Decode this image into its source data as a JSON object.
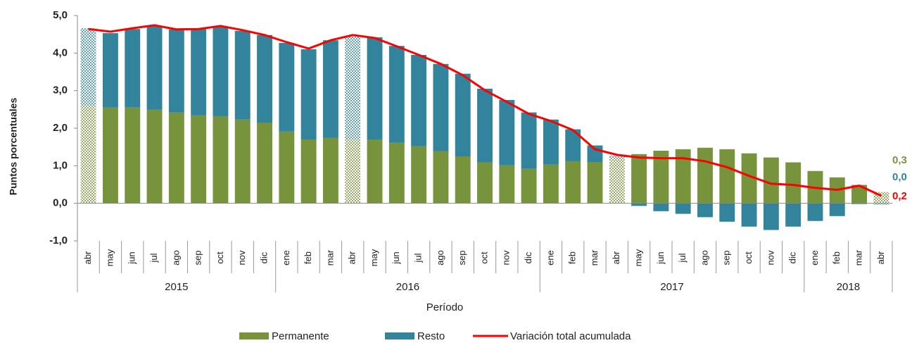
{
  "chart_data": {
    "type": "stacked_bar_line",
    "y_axis_label": "Puntos porcentuales",
    "x_axis_label": "Período",
    "categories": [
      "abr",
      "may",
      "jun",
      "jul",
      "ago",
      "sep",
      "oct",
      "nov",
      "dic",
      "ene",
      "feb",
      "mar",
      "abr",
      "may",
      "jun",
      "jul",
      "ago",
      "sep",
      "oct",
      "nov",
      "dic",
      "ene",
      "feb",
      "mar",
      "abr",
      "may",
      "jun",
      "jul",
      "ago",
      "sep",
      "oct",
      "nov",
      "dic",
      "ene",
      "feb",
      "mar",
      "abr"
    ],
    "groups": [
      {
        "label": "2015",
        "size": 9
      },
      {
        "label": "2016",
        "size": 12
      },
      {
        "label": "2017",
        "size": 12
      },
      {
        "label": "2018",
        "size": 4
      }
    ],
    "patterned_indices": [
      0,
      12,
      24,
      36
    ],
    "series": [
      {
        "name": "Permanente",
        "color": "#77933c",
        "kind": "bar",
        "values": [
          2.6,
          2.55,
          2.55,
          2.49,
          2.42,
          2.34,
          2.32,
          2.23,
          2.15,
          1.91,
          1.7,
          1.74,
          1.7,
          1.7,
          1.61,
          1.52,
          1.39,
          1.25,
          1.09,
          1.01,
          0.92,
          1.03,
          1.12,
          1.1,
          1.2,
          1.31,
          1.4,
          1.44,
          1.48,
          1.44,
          1.33,
          1.22,
          1.09,
          0.86,
          0.69,
          0.49,
          0.3
        ],
        "value_labels": [
          null,
          null,
          null,
          null,
          null,
          null,
          null,
          null,
          null,
          null,
          null,
          null,
          null,
          null,
          null,
          null,
          null,
          null,
          null,
          null,
          null,
          null,
          null,
          null,
          null,
          null,
          null,
          null,
          null,
          null,
          null,
          null,
          null,
          null,
          null,
          null,
          "0,3"
        ]
      },
      {
        "name": "Resto",
        "color": "#31849b",
        "kind": "bar",
        "values": [
          2.06,
          1.98,
          2.09,
          2.23,
          2.21,
          2.3,
          2.38,
          2.36,
          2.33,
          2.36,
          2.4,
          2.6,
          2.74,
          2.72,
          2.58,
          2.43,
          2.32,
          2.2,
          1.96,
          1.74,
          1.5,
          1.2,
          0.85,
          0.44,
          0.07,
          -0.07,
          -0.21,
          -0.28,
          -0.37,
          -0.49,
          -0.62,
          -0.71,
          -0.62,
          -0.47,
          -0.34,
          -0.02,
          -0.04
        ],
        "value_labels": [
          null,
          null,
          null,
          null,
          null,
          null,
          null,
          null,
          null,
          null,
          null,
          null,
          null,
          null,
          null,
          null,
          null,
          null,
          null,
          null,
          null,
          null,
          null,
          null,
          null,
          null,
          null,
          null,
          null,
          null,
          null,
          null,
          null,
          null,
          null,
          null,
          "0,0"
        ]
      },
      {
        "name": "Variación total acumulada",
        "color": "#ff0000",
        "kind": "line",
        "values": [
          4.64,
          4.57,
          4.66,
          4.74,
          4.63,
          4.64,
          4.72,
          4.61,
          4.48,
          4.29,
          4.12,
          4.34,
          4.48,
          4.4,
          4.18,
          3.95,
          3.71,
          3.41,
          3.01,
          2.7,
          2.38,
          2.19,
          1.95,
          1.44,
          1.29,
          1.22,
          1.2,
          1.2,
          1.12,
          0.96,
          0.73,
          0.52,
          0.49,
          0.41,
          0.36,
          0.47,
          0.2
        ],
        "value_labels": [
          null,
          null,
          null,
          null,
          null,
          null,
          null,
          null,
          null,
          null,
          null,
          null,
          null,
          null,
          null,
          null,
          null,
          null,
          null,
          null,
          null,
          null,
          null,
          null,
          null,
          null,
          null,
          null,
          null,
          null,
          null,
          null,
          null,
          null,
          null,
          null,
          "0,2"
        ]
      }
    ],
    "ylim": [
      -1,
      5
    ],
    "yticks": [
      {
        "value": -1,
        "label": "-1,0"
      },
      {
        "value": 0,
        "label": "0,0"
      },
      {
        "value": 1,
        "label": "1,0"
      },
      {
        "value": 2,
        "label": "2,0"
      },
      {
        "value": 3,
        "label": "3,0"
      },
      {
        "value": 4,
        "label": "4,0"
      },
      {
        "value": 5,
        "label": "5,0"
      }
    ]
  }
}
